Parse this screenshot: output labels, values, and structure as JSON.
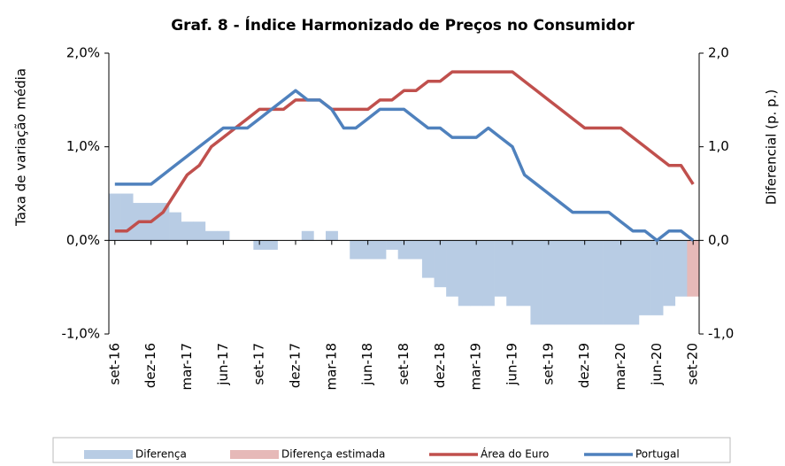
{
  "chart_data": {
    "type": "bar_line",
    "title": "Graf. 8 - Índice Harmonizado de Preços no Consumidor",
    "y_label": "Taxa de variação média",
    "y2_label": "Diferencial (p. p.)",
    "categories": [
      "set-16",
      null,
      null,
      "dez-16",
      null,
      null,
      "mar-17",
      null,
      null,
      "jun-17",
      null,
      null,
      "set-17",
      null,
      null,
      "dez-17",
      null,
      null,
      "mar-18",
      null,
      null,
      "jun-18",
      null,
      null,
      "set-18",
      null,
      null,
      "dez-18",
      null,
      null,
      "mar-19",
      null,
      null,
      "jun-19",
      null,
      null,
      "set-19",
      null,
      null,
      "dez-19",
      null,
      null,
      "mar-20",
      null,
      null,
      "jun-20",
      null,
      null,
      "set-20"
    ],
    "ylim": [
      -1,
      2
    ],
    "yticks": [
      {
        "value": -1,
        "label": "-1,0%"
      },
      {
        "value": 0,
        "label": "0,0%"
      },
      {
        "value": 1,
        "label": "1,0%"
      },
      {
        "value": 2,
        "label": "2,0%"
      }
    ],
    "y2lim": [
      -1,
      2
    ],
    "y2ticks": [
      {
        "value": -1,
        "label": "-1,0"
      },
      {
        "value": 0,
        "label": "0,0"
      },
      {
        "value": 1,
        "label": "1,0"
      },
      {
        "value": 2,
        "label": "2,0"
      }
    ],
    "series": [
      {
        "name": "Diferença",
        "kind": "bar",
        "axis": "y2",
        "color": "#b8cce4",
        "values": [
          0.5,
          0.5,
          0.4,
          0.4,
          0.4,
          0.3,
          0.2,
          0.2,
          0.1,
          0.1,
          0,
          0,
          -0.1,
          -0.1,
          0,
          0,
          0.1,
          0,
          0.1,
          0,
          -0.2,
          -0.2,
          -0.2,
          -0.1,
          -0.2,
          -0.2,
          -0.4,
          -0.5,
          -0.6,
          -0.7,
          -0.7,
          -0.7,
          -0.6,
          -0.7,
          -0.7,
          -0.9,
          -0.9,
          -0.9,
          -0.9,
          -0.9,
          -0.9,
          -0.9,
          -0.9,
          -0.9,
          -0.8,
          -0.8,
          -0.7,
          -0.6,
          null
        ]
      },
      {
        "name": "Diferença estimada",
        "kind": "bar",
        "axis": "y2",
        "color": "#e6b9b8",
        "values": [
          null,
          null,
          null,
          null,
          null,
          null,
          null,
          null,
          null,
          null,
          null,
          null,
          null,
          null,
          null,
          null,
          null,
          null,
          null,
          null,
          null,
          null,
          null,
          null,
          null,
          null,
          null,
          null,
          null,
          null,
          null,
          null,
          null,
          null,
          null,
          null,
          null,
          null,
          null,
          null,
          null,
          null,
          null,
          null,
          null,
          null,
          null,
          null,
          -0.6
        ]
      },
      {
        "name": "Área do Euro",
        "kind": "line",
        "color": "#c0504d",
        "values": [
          0.1,
          0.1,
          0.2,
          0.2,
          0.3,
          0.5,
          0.7,
          0.8,
          1.0,
          1.1,
          1.2,
          1.3,
          1.4,
          1.4,
          1.4,
          1.5,
          1.5,
          1.5,
          1.4,
          1.4,
          1.4,
          1.4,
          1.5,
          1.5,
          1.6,
          1.6,
          1.7,
          1.7,
          1.8,
          1.8,
          1.8,
          1.8,
          1.8,
          1.8,
          1.7,
          1.6,
          1.5,
          1.4,
          1.3,
          1.2,
          1.2,
          1.2,
          1.2,
          1.1,
          1.0,
          0.9,
          0.8,
          0.8,
          0.6
        ]
      },
      {
        "name": "Portugal",
        "kind": "line",
        "color": "#4f81bd",
        "values": [
          0.6,
          0.6,
          0.6,
          0.6,
          0.7,
          0.8,
          0.9,
          1.0,
          1.1,
          1.2,
          1.2,
          1.2,
          1.3,
          1.4,
          1.5,
          1.6,
          1.5,
          1.5,
          1.4,
          1.2,
          1.2,
          1.3,
          1.4,
          1.4,
          1.4,
          1.3,
          1.2,
          1.2,
          1.1,
          1.1,
          1.1,
          1.2,
          1.1,
          1.0,
          0.7,
          0.6,
          0.5,
          0.4,
          0.3,
          0.3,
          0.3,
          0.3,
          0.2,
          0.1,
          0.1,
          0,
          0.1,
          0.1,
          0
        ]
      }
    ]
  }
}
